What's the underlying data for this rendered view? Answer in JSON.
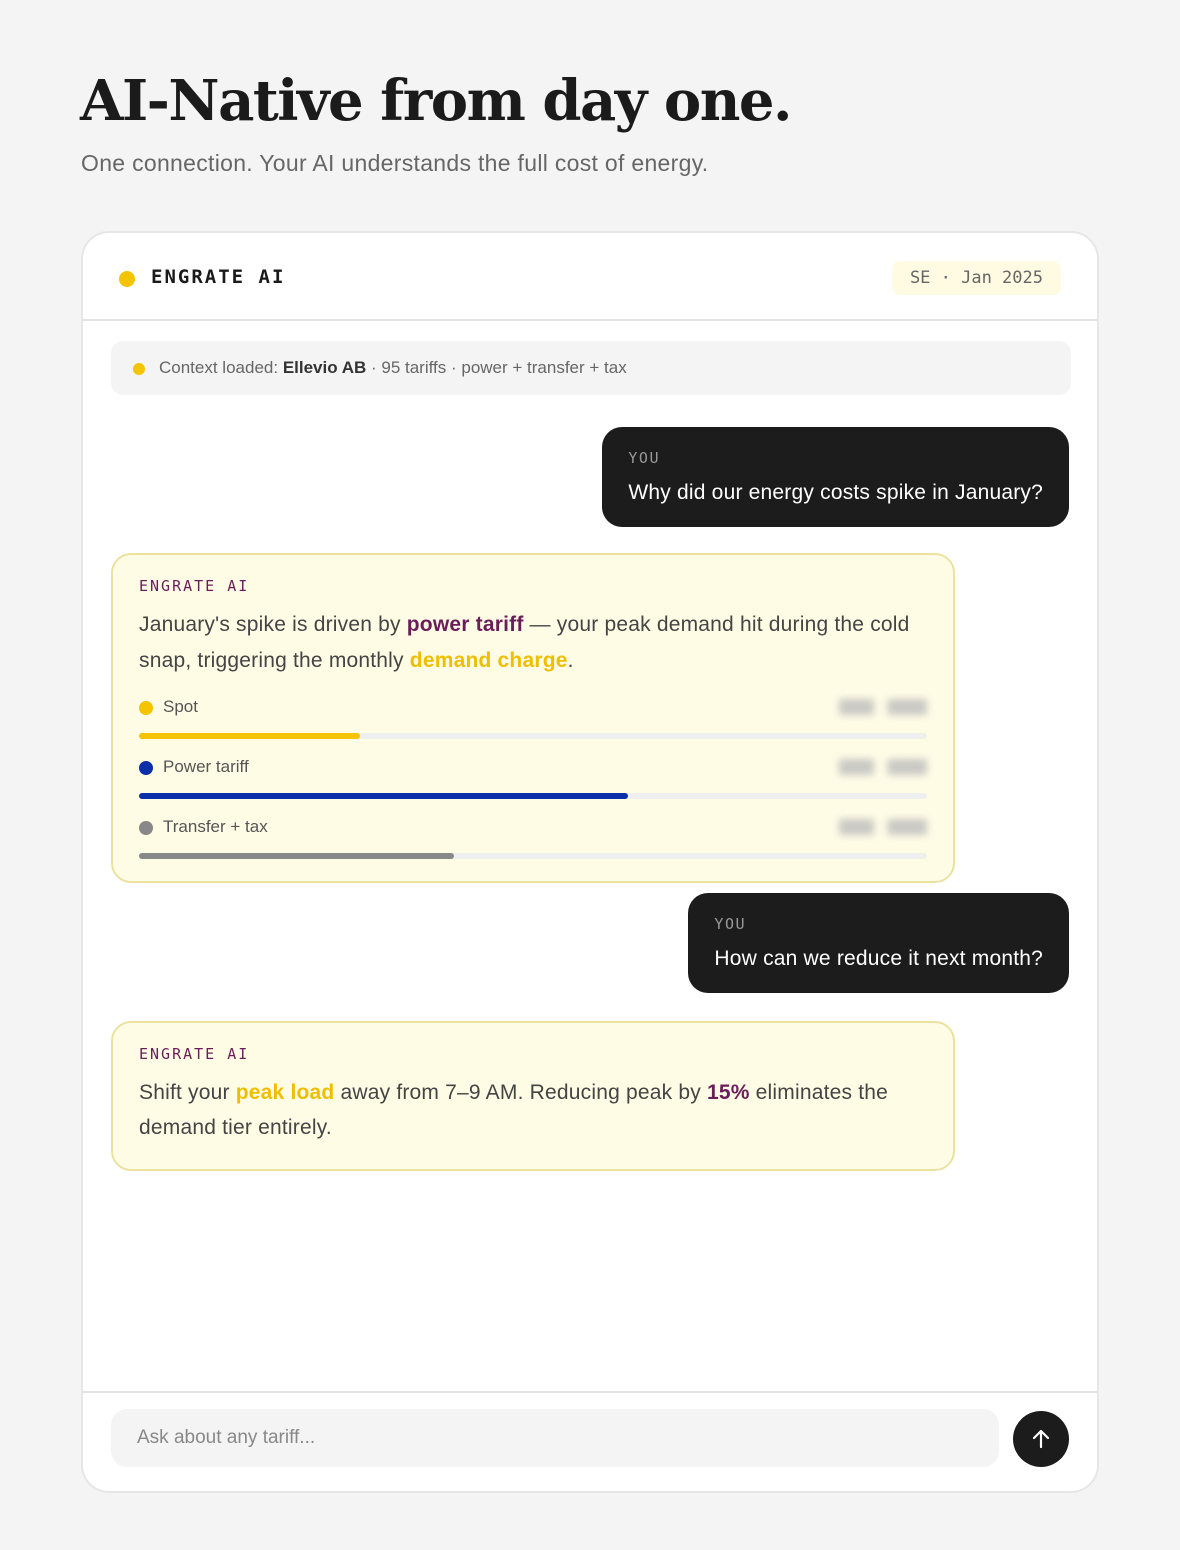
{
  "hero": {
    "title": "AI-Native from day one.",
    "subtitle": "One connection. Your AI understands the full cost of energy."
  },
  "chat": {
    "brand": "ENGRATE AI",
    "badge": "SE · Jan 2025",
    "context": {
      "prefix": "Context loaded: ",
      "company": "Ellevio AB",
      "suffix": " · 95 tariffs · power + transfer + tax"
    },
    "messages": [
      {
        "role": "user",
        "label": "YOU",
        "text": "Why did our energy costs spike in January?"
      },
      {
        "role": "ai",
        "label": "ENGRATE AI",
        "parts": [
          "January's spike is driven by ",
          "power tariff",
          " — your peak demand hit during the cold snap, triggering the monthly ",
          "demand charge",
          "."
        ],
        "breakdown": [
          {
            "name": "Spot",
            "color": "#f5c400",
            "fraction": 0.28
          },
          {
            "name": "Power tariff",
            "color": "#0a2fa8",
            "fraction": 0.62
          },
          {
            "name": "Transfer + tax",
            "color": "#888888",
            "fraction": 0.4
          }
        ]
      },
      {
        "role": "user",
        "label": "YOU",
        "text": "How can we reduce it next month?"
      },
      {
        "role": "ai",
        "label": "ENGRATE AI",
        "parts": [
          "Shift your ",
          "peak load",
          " away from 7–9 AM. Reducing peak by ",
          "15%",
          " eliminates the demand tier entirely."
        ]
      }
    ],
    "input": {
      "placeholder": "Ask about any tariff..."
    },
    "send_icon": "arrow-up-icon"
  }
}
